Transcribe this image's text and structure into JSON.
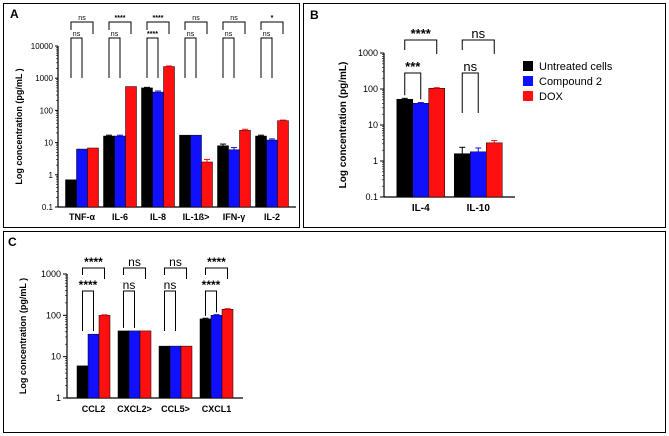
{
  "legend": [
    {
      "name": "Untreated cells",
      "color": "#000000"
    },
    {
      "name": "Compound 2",
      "color": "#1010ff"
    },
    {
      "name": "DOX",
      "color": "#ff1010"
    }
  ],
  "chart_data": [
    {
      "panel": "A",
      "type": "bar",
      "yscale": "log",
      "ylabel": "Log concentration (pg/mL )",
      "ylim": [
        0.1,
        10000
      ],
      "yticks": [
        "0.1",
        "1",
        "10",
        "100",
        "1000",
        "10000"
      ],
      "categories": [
        "TNF-α",
        "IL-6",
        "IL-8",
        "IL-1ß>",
        "IFN-γ",
        "IL-2"
      ],
      "series": [
        {
          "name": "Untreated cells",
          "values": [
            0.7,
            16,
            500,
            17,
            8,
            16
          ],
          "errors": [
            0,
            1,
            20,
            0,
            1,
            1
          ]
        },
        {
          "name": "Compound 2",
          "values": [
            6.3,
            16,
            370,
            17,
            6,
            12
          ],
          "errors": [
            0,
            1,
            30,
            0,
            1,
            1
          ]
        },
        {
          "name": "DOX",
          "values": [
            6.8,
            550,
            2300,
            2.5,
            24,
            48
          ],
          "errors": [
            0,
            0,
            100,
            0.5,
            2,
            2
          ]
        }
      ],
      "significance": [
        {
          "category": 0,
          "top": "ns",
          "bottom": "ns"
        },
        {
          "category": 1,
          "top": "****",
          "bottom": "ns"
        },
        {
          "category": 2,
          "top": "****",
          "bottom": "****"
        },
        {
          "category": 3,
          "top": "ns",
          "bottom": "ns"
        },
        {
          "category": 4,
          "top": "ns",
          "bottom": "ns"
        },
        {
          "category": 5,
          "top": "*",
          "bottom": "ns"
        }
      ]
    },
    {
      "panel": "B",
      "type": "bar",
      "yscale": "log",
      "ylabel": "Log concentration (pg/mL)",
      "ylim": [
        0.1,
        1000
      ],
      "yticks": [
        "0.1",
        "1",
        "10",
        "100",
        "1000"
      ],
      "categories": [
        "IL-4",
        "IL-10"
      ],
      "series": [
        {
          "name": "Untreated cells",
          "values": [
            52,
            1.6
          ],
          "errors": [
            3,
            0.8
          ]
        },
        {
          "name": "Compound 2",
          "values": [
            40,
            1.8
          ],
          "errors": [
            2,
            0.5
          ]
        },
        {
          "name": "DOX",
          "values": [
            105,
            3.2
          ],
          "errors": [
            4,
            0.5
          ]
        }
      ],
      "significance": [
        {
          "category": 0,
          "top": "****",
          "bottom": "***"
        },
        {
          "category": 1,
          "top": "ns",
          "bottom": "ns"
        }
      ]
    },
    {
      "panel": "C",
      "type": "bar",
      "yscale": "log",
      "ylabel": "Log concentration (pg/mL )",
      "ylim": [
        1,
        1000
      ],
      "yticks": [
        "1",
        "10",
        "100",
        "1000"
      ],
      "categories": [
        "CCL2",
        "CXCL2>",
        "CCL5>",
        "CXCL1"
      ],
      "series": [
        {
          "name": "Untreated cells",
          "values": [
            6,
            42,
            18,
            82
          ],
          "errors": [
            0,
            0,
            0,
            3
          ]
        },
        {
          "name": "Compound 2",
          "values": [
            35,
            42,
            18,
            100
          ],
          "errors": [
            0,
            0,
            0,
            4
          ]
        },
        {
          "name": "DOX",
          "values": [
            100,
            42,
            18,
            140
          ],
          "errors": [
            3,
            0,
            0,
            5
          ]
        }
      ],
      "significance": [
        {
          "category": 0,
          "top": "****",
          "bottom": "****"
        },
        {
          "category": 1,
          "top": "ns",
          "bottom": "ns"
        },
        {
          "category": 2,
          "top": "ns",
          "bottom": "ns"
        },
        {
          "category": 3,
          "top": "****",
          "bottom": "****"
        }
      ]
    }
  ]
}
